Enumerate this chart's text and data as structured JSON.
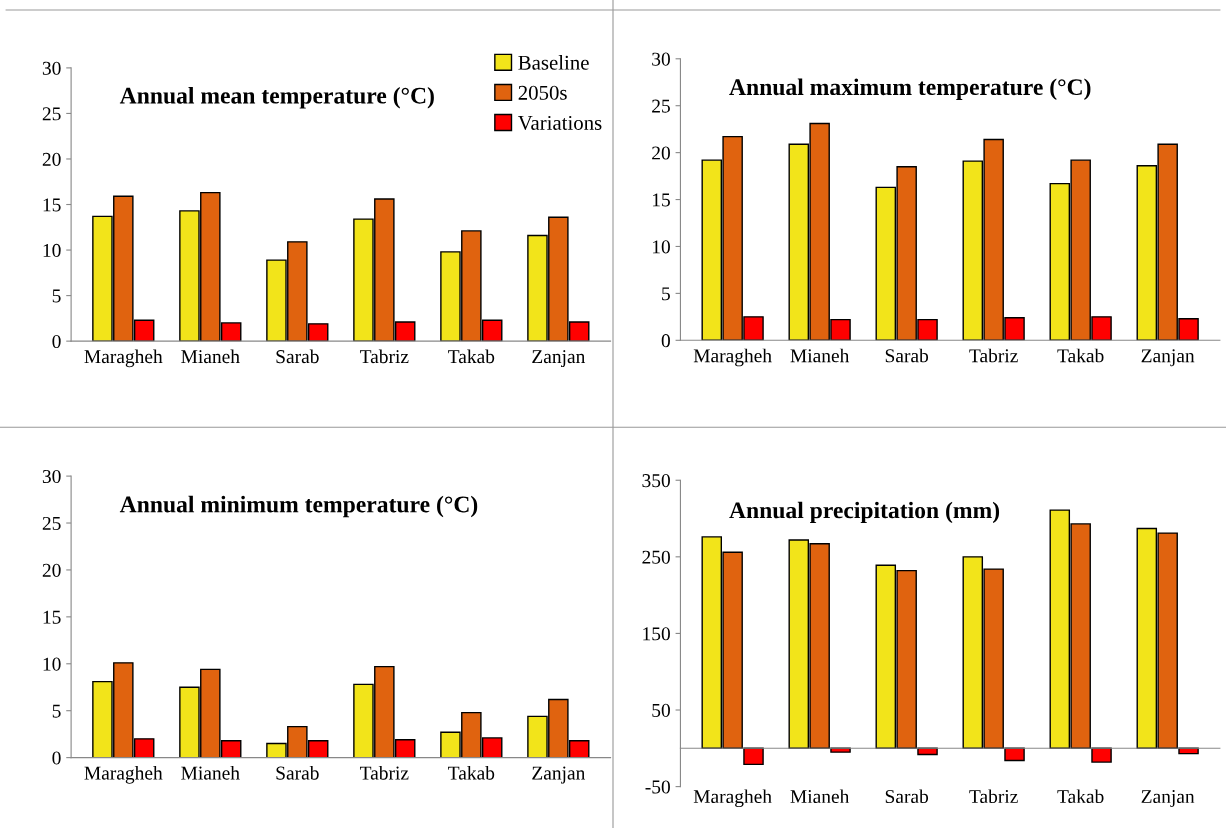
{
  "chart_data": [
    {
      "type": "bar",
      "title": "Annual mean temperature (°C)",
      "categories": [
        "Maragheh",
        "Mianeh",
        "Sarab",
        "Tabriz",
        "Takab",
        "Zanjan"
      ],
      "ylim": [
        0,
        30
      ],
      "yticks": [
        0,
        5,
        10,
        15,
        20,
        25,
        30
      ],
      "legend": "top right",
      "series": [
        {
          "name": "Baseline",
          "color": "#f2e41a",
          "values": [
            13.7,
            14.3,
            8.9,
            13.4,
            9.8,
            11.6
          ]
        },
        {
          "name": "2050s",
          "color": "#e0630f",
          "values": [
            15.9,
            16.3,
            10.9,
            15.6,
            12.1,
            13.6
          ]
        },
        {
          "name": "Variations",
          "color": "#ff0000",
          "values": [
            2.3,
            2.0,
            1.9,
            2.1,
            2.3,
            2.1
          ]
        }
      ]
    },
    {
      "type": "bar",
      "title": "Annual maximum temperature (°C)",
      "categories": [
        "Maragheh",
        "Mianeh",
        "Sarab",
        "Tabriz",
        "Takab",
        "Zanjan"
      ],
      "ylim": [
        0,
        30
      ],
      "yticks": [
        0,
        5,
        10,
        15,
        20,
        25,
        30
      ],
      "series": [
        {
          "color": "#f2e41a",
          "values": [
            19.2,
            20.9,
            16.3,
            19.1,
            16.7,
            18.6
          ]
        },
        {
          "color": "#e0630f",
          "values": [
            21.7,
            23.1,
            18.5,
            21.4,
            19.2,
            20.9
          ]
        },
        {
          "color": "#ff0000",
          "values": [
            2.5,
            2.2,
            2.2,
            2.4,
            2.5,
            2.3
          ]
        }
      ]
    },
    {
      "type": "bar",
      "title": "Annual minimum temperature (°C)",
      "categories": [
        "Maragheh",
        "Mianeh",
        "Sarab",
        "Tabriz",
        "Takab",
        "Zanjan"
      ],
      "ylim": [
        0,
        30
      ],
      "yticks": [
        0,
        5,
        10,
        15,
        20,
        25,
        30
      ],
      "series": [
        {
          "color": "#f2e41a",
          "values": [
            8.1,
            7.5,
            1.5,
            7.8,
            2.7,
            4.4
          ]
        },
        {
          "color": "#e0630f",
          "values": [
            10.1,
            9.4,
            3.3,
            9.7,
            4.8,
            6.2
          ]
        },
        {
          "color": "#ff0000",
          "values": [
            2.0,
            1.8,
            1.8,
            1.9,
            2.1,
            1.8
          ]
        }
      ]
    },
    {
      "type": "bar",
      "title": "Annual precipitation (mm)",
      "categories": [
        "Maragheh",
        "Mianeh",
        "Sarab",
        "Tabriz",
        "Takab",
        "Zanjan"
      ],
      "ylim": [
        -50,
        350
      ],
      "yticks": [
        -50,
        50,
        150,
        250,
        350
      ],
      "series": [
        {
          "color": "#f2e41a",
          "values": [
            276,
            272,
            239,
            250,
            311,
            287
          ]
        },
        {
          "color": "#e0630f",
          "values": [
            256,
            267,
            232,
            234,
            293,
            281
          ]
        },
        {
          "color": "#ff0000",
          "values": [
            -21,
            -5,
            -8,
            -16,
            -18,
            -7
          ]
        }
      ]
    }
  ]
}
